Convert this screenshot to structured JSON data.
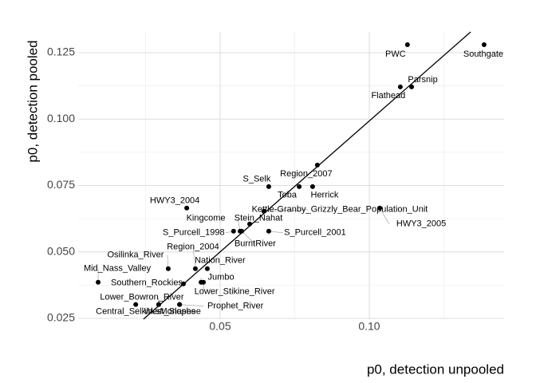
{
  "chart_data": {
    "type": "scatter",
    "xlabel": "p0, detection unpooled",
    "ylabel": "p0, detection pooled",
    "xlim": [
      0.0024,
      0.1452
    ],
    "ylim": [
      0.0247,
      0.1328
    ],
    "xticks": [
      0.05,
      {
        "value": 0.1,
        "label": "0.10"
      }
    ],
    "yticks": [
      0.025,
      {
        "value": 0.05,
        "label": "0.050"
      },
      0.075,
      {
        "value": 0.1,
        "label": "0.100"
      },
      0.125
    ],
    "grid": true,
    "color": "#000000",
    "labels": [
      "PWC",
      "Southgate",
      "Parsnip",
      "Flathead",
      "Region_2007",
      "S_Selk",
      "Toba",
      "Herrick",
      "HWY3_2004",
      "Kettle-Granby_Grizzly_Bear_Population_Unit",
      "HWY3_2005",
      "Kingcome",
      "Stein_Nahat",
      "S_Purcell_1998",
      "BurntRiver",
      "S_Purcell_2001",
      "Osilinka_River",
      "Region_2004",
      "Nation_River",
      "Mid_Nass_Valley",
      "Southern_Rockies",
      "Jumbo",
      "Lower_Stikine_River",
      "Lower_Bowron_River",
      "Central_Selkirks",
      "West_Slopes",
      "Monashee",
      "Prophet_River"
    ],
    "x": [
      0.1128,
      0.1385,
      0.1142,
      0.1104,
      0.0826,
      0.0663,
      0.0765,
      0.081,
      0.0388,
      0.0647,
      0.1035,
      0.0567,
      0.0599,
      0.0545,
      0.0572,
      0.0663,
      0.0326,
      0.0417,
      0.0457,
      0.0091,
      0.0377,
      0.0436,
      0.0444,
      0.0294,
      0.0217,
      0.0294,
      0.0364,
      0.0364
    ],
    "y": [
      0.128,
      0.128,
      0.1121,
      0.1121,
      0.0827,
      0.0746,
      0.0746,
      0.0746,
      0.0665,
      0.0653,
      0.0665,
      0.0578,
      0.0605,
      0.0578,
      0.0578,
      0.0578,
      0.0437,
      0.0437,
      0.0437,
      0.0386,
      0.038,
      0.0386,
      0.0386,
      0.0302,
      0.0302,
      0.0302,
      0.0302,
      0.0302
    ],
    "fit_line": {
      "x": [
        0.0243,
        0.134
      ],
      "y": [
        0.0247,
        0.1328
      ]
    }
  }
}
